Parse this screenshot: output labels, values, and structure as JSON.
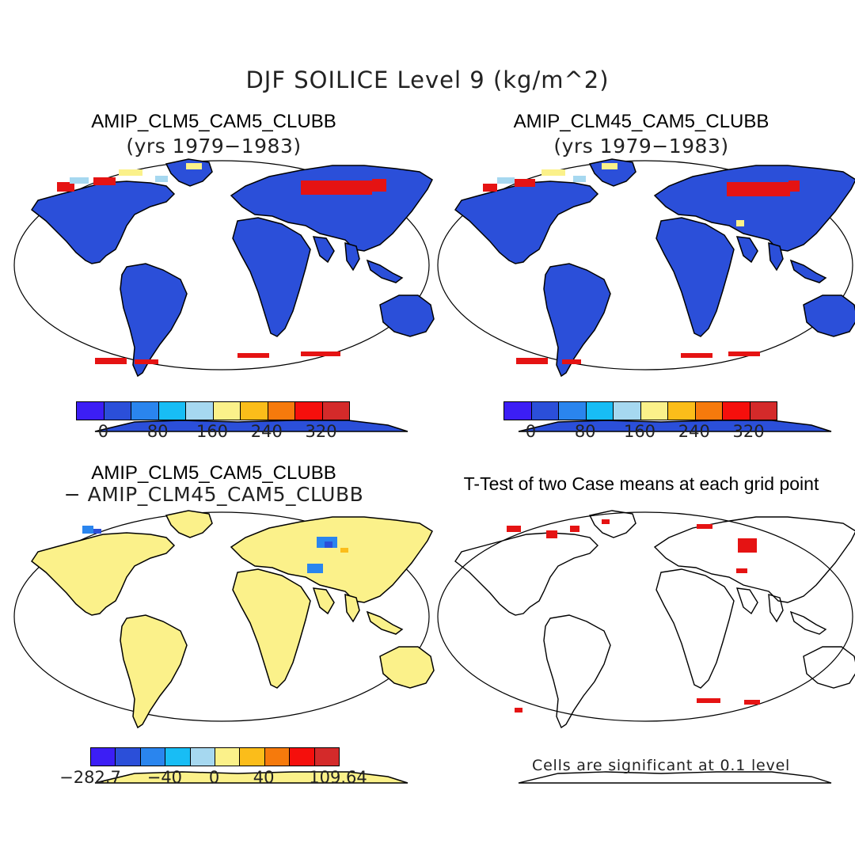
{
  "title": "DJF SOILICE Level 9 (kg/m^2)",
  "panels": {
    "top_left": {
      "title": "AMIP_CLM5_CAM5_CLUBB",
      "subtitle": "(yrs 1979−1983)"
    },
    "top_right": {
      "title": "AMIP_CLM45_CAM5_CLUBB",
      "subtitle": "(yrs 1979−1983)"
    },
    "bottom_left": {
      "title": "AMIP_CLM5_CAM5_CLUBB",
      "subtitle": "− AMIP_CLM45_CAM5_CLUBB"
    },
    "bottom_right": {
      "title": "T-Test of two Case means at each grid point",
      "note": "Cells are significant at 0.1 level"
    }
  },
  "colorbars": {
    "absolute": {
      "colors": [
        "#3c1ef5",
        "#2b4fd9",
        "#2a85ee",
        "#18bdf5",
        "#a6d8f0",
        "#fbf18a",
        "#fbbd1a",
        "#f67a0c",
        "#f50f0c",
        "#d42a2a"
      ],
      "ticks": [
        "0",
        "80",
        "160",
        "240",
        "320"
      ]
    },
    "difference": {
      "colors": [
        "#3c1ef5",
        "#2b4fd9",
        "#2a85ee",
        "#18bdf5",
        "#a6d8f0",
        "#fbf18a",
        "#fbbd1a",
        "#f67a0c",
        "#f50f0c",
        "#d42a2a"
      ],
      "ticks": [
        "−282.7",
        "−40",
        "0",
        "40",
        "109.64"
      ]
    }
  },
  "map_colors": {
    "land_abs": "#2b4fd9",
    "land_diff": "#fbf18a",
    "hot": "#e51313",
    "cool": "#2a85ee",
    "outline": "#000000"
  }
}
